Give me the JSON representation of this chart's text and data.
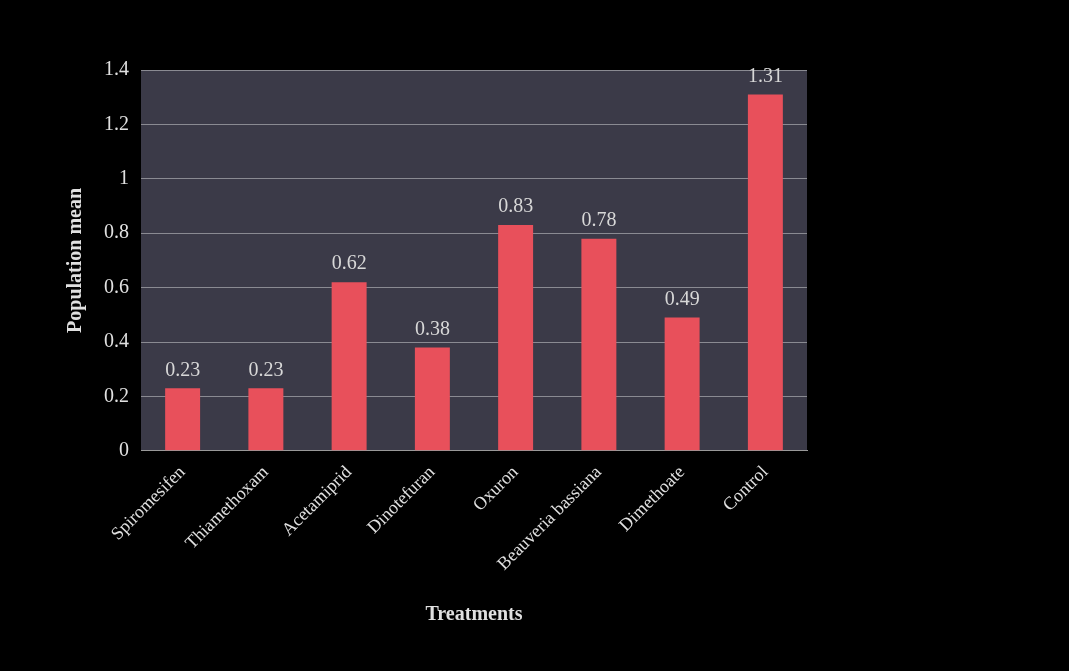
{
  "chart_data": {
    "type": "bar",
    "xlabel": "Treatments",
    "ylabel": "Population mean",
    "categories": [
      "Spiromesifen",
      "Thiamethoxam",
      "Acetamiprid",
      "Dinotefuran",
      "Oxuron",
      "Beauveria bassiana",
      "Dimethoate",
      "Control"
    ],
    "values": [
      0.23,
      0.23,
      0.62,
      0.38,
      0.83,
      0.78,
      0.49,
      1.31
    ],
    "color": "#e8505b",
    "ylim": [
      0,
      1.4
    ],
    "yticks": [
      0,
      0.2,
      0.4,
      0.6,
      0.8,
      1,
      1.2,
      1.4
    ],
    "grid": "y",
    "legend": false,
    "data_labels": true
  }
}
